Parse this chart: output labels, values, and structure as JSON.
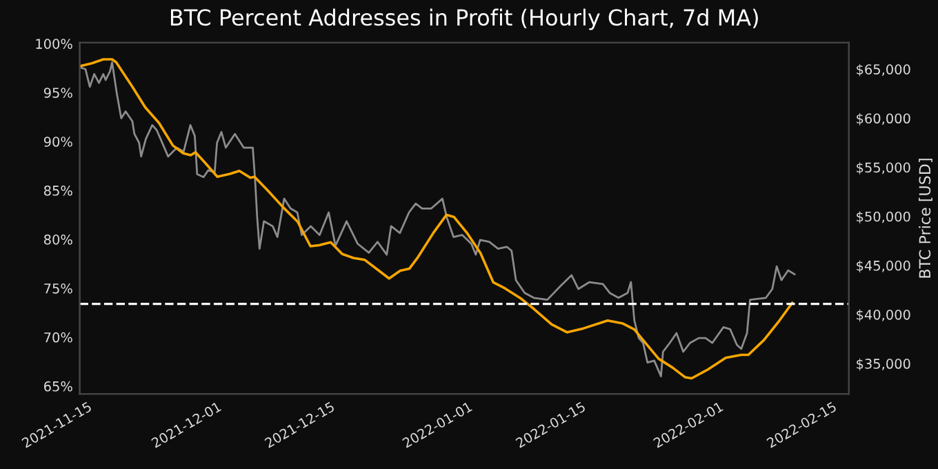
{
  "chart_data": {
    "type": "line",
    "title": "BTC Percent Addresses in Profit (Hourly Chart, 7d MA)",
    "y2label": "BTC Price [USD]",
    "xlim": [
      "2021-11-14",
      "2022-02-17"
    ],
    "xticks": [
      {
        "value": "2021-11-15",
        "label": "2021-11-15"
      },
      {
        "value": "2021-12-01",
        "label": "2021-12-01"
      },
      {
        "value": "2021-12-15",
        "label": "2021-12-15"
      },
      {
        "value": "2022-01-01",
        "label": "2022-01-01"
      },
      {
        "value": "2022-01-15",
        "label": "2022-01-15"
      },
      {
        "value": "2022-02-01",
        "label": "2022-02-01"
      },
      {
        "value": "2022-02-15",
        "label": "2022-02-15"
      }
    ],
    "ylim": [
      64.2,
      100.1
    ],
    "yticks": [
      {
        "value": 65,
        "label": "65%"
      },
      {
        "value": 70,
        "label": "70%"
      },
      {
        "value": 75,
        "label": "75%"
      },
      {
        "value": 80,
        "label": "80%"
      },
      {
        "value": 85,
        "label": "85%"
      },
      {
        "value": 90,
        "label": "90%"
      },
      {
        "value": 95,
        "label": "95%"
      },
      {
        "value": 100,
        "label": "100%"
      }
    ],
    "y2lim": [
      31900,
      67700
    ],
    "y2ticks": [
      {
        "value": 35000,
        "label": "$35,000"
      },
      {
        "value": 40000,
        "label": "$40,000"
      },
      {
        "value": 45000,
        "label": "$45,000"
      },
      {
        "value": 50000,
        "label": "$50,000"
      },
      {
        "value": 55000,
        "label": "$55,000"
      },
      {
        "value": 60000,
        "label": "$60,000"
      },
      {
        "value": 65000,
        "label": "$65,000"
      }
    ],
    "grid": false,
    "legend": false,
    "marker": "none",
    "ref_lines": [
      {
        "axis": "y",
        "value": 73.4,
        "color": "#ffffff",
        "line_style": "dashed"
      }
    ],
    "series": [
      {
        "axis": "y2",
        "color": "#8c8c8c",
        "line_style": "solid",
        "x": [
          "2021-11-14T00:00",
          "2021-11-14T17:00",
          "2021-11-15T06:00",
          "2021-11-15T19:00",
          "2021-11-16T09:00",
          "2021-11-16T22:00",
          "2021-11-17T05:00",
          "2021-11-17T18:00",
          "2021-11-18T00:00",
          "2021-11-18T07:00",
          "2021-11-18T14:00",
          "2021-11-19T03:00",
          "2021-11-19T16:00",
          "2021-11-20T12:00",
          "2021-11-20T18:00",
          "2021-11-21T08:00",
          "2021-11-21T14:00",
          "2021-11-22T04:00",
          "2021-11-22T23:00",
          "2021-11-23T12:00",
          "2021-11-24T02:00",
          "2021-11-24T22:00",
          "2021-11-26T00:00",
          "2021-11-26T20:00",
          "2021-11-27T16:00",
          "2021-11-28T05:00",
          "2021-11-28T12:00",
          "2021-11-29T07:00",
          "2021-11-29T21:00",
          "2021-11-30T16:00",
          "2021-11-30T23:00",
          "2021-12-01T12:00",
          "2021-12-02T01:00",
          "2021-12-03T04:00",
          "2021-12-04T06:00",
          "2021-12-05T09:00",
          "2021-12-05T16:00",
          "2021-12-05T22:00",
          "2021-12-06T05:00",
          "2021-12-06T18:00",
          "2021-12-07T20:00",
          "2021-12-08T10:00",
          "2021-12-09T06:00",
          "2021-12-10T01:00",
          "2021-12-10T21:00",
          "2021-12-11T10:00",
          "2021-12-12T13:00",
          "2021-12-13T15:00",
          "2021-12-14T18:00",
          "2021-12-15T14:00",
          "2021-12-16T23:00",
          "2021-12-18T08:00",
          "2021-12-19T17:00",
          "2021-12-20T19:00",
          "2021-12-21T22:00",
          "2021-12-22T11:00",
          "2021-12-23T13:00",
          "2021-12-24T16:00",
          "2021-12-25T12:00",
          "2021-12-26T07:00",
          "2021-12-27T10:00",
          "2021-12-28T19:00",
          "2021-12-29T08:00",
          "2021-12-30T04:00",
          "2021-12-31T06:00",
          "2022-01-01T09:00",
          "2022-01-01T22:00",
          "2022-01-02T11:00",
          "2022-01-03T14:00",
          "2022-01-04T16:00",
          "2022-01-05T18:00",
          "2022-01-06T08:00",
          "2022-01-06T21:00",
          "2022-01-07T23:00",
          "2022-01-09T02:00",
          "2022-01-10T18:00",
          "2022-01-12T09:00",
          "2022-01-13T18:00",
          "2022-01-14T14:00",
          "2022-01-15T23:00",
          "2022-01-17T15:00",
          "2022-01-18T11:00",
          "2022-01-19T13:00",
          "2022-01-20T16:00",
          "2022-01-21T02:00",
          "2022-01-21T12:00",
          "2022-01-22T01:00",
          "2022-01-22T14:00",
          "2022-01-23T03:00",
          "2022-01-23T23:00",
          "2022-01-24T19:00",
          "2022-01-25T01:00",
          "2022-01-25T21:00",
          "2022-01-26T17:00",
          "2022-01-27T13:00",
          "2022-01-28T09:00",
          "2022-01-29T11:00",
          "2022-01-30T07:00",
          "2022-01-31T03:00",
          "2022-02-01T12:00",
          "2022-02-02T08:00",
          "2022-02-03T04:00",
          "2022-02-03T17:00",
          "2022-02-04T10:00",
          "2022-02-04T19:00",
          "2022-02-06T18:00",
          "2022-02-07T13:00",
          "2022-02-08T02:00",
          "2022-02-08T16:00",
          "2022-02-09T12:00",
          "2022-02-10T07:00"
        ],
        "values": [
          65200,
          65000,
          63200,
          64500,
          63600,
          64500,
          63900,
          64800,
          65700,
          64100,
          62500,
          60000,
          60700,
          59700,
          58400,
          57500,
          56100,
          57900,
          59300,
          58800,
          57700,
          56100,
          57000,
          56600,
          59300,
          58200,
          54300,
          54000,
          54700,
          54500,
          57500,
          58600,
          57000,
          58400,
          57000,
          57000,
          53600,
          49900,
          46700,
          49500,
          49000,
          47900,
          51800,
          50800,
          50400,
          48100,
          49000,
          48100,
          50400,
          47000,
          49500,
          47200,
          46300,
          47400,
          46100,
          49000,
          48300,
          50400,
          51300,
          50800,
          50800,
          51800,
          49900,
          47900,
          48100,
          47200,
          46100,
          47600,
          47400,
          46700,
          46900,
          46500,
          43500,
          42200,
          41700,
          41500,
          42900,
          44000,
          42600,
          43300,
          43100,
          42200,
          41700,
          42200,
          43300,
          39400,
          37600,
          37100,
          35100,
          35300,
          33700,
          36200,
          37100,
          38100,
          36200,
          37100,
          37600,
          37600,
          37100,
          38700,
          38500,
          36900,
          36500,
          38100,
          41500,
          41700,
          42600,
          44900,
          43500,
          44500,
          44100
        ]
      },
      {
        "axis": "y",
        "color": "#f7a600",
        "line_style": "solid",
        "x": [
          "2021-11-14T00:00",
          "2021-11-15T12:00",
          "2021-11-16T22:00",
          "2021-11-18T00:00",
          "2021-11-18T12:00",
          "2021-11-20T12:00",
          "2021-11-22T02:00",
          "2021-11-23T19:00",
          "2021-11-25T12:00",
          "2021-11-26T19:00",
          "2021-11-27T17:00",
          "2021-11-28T07:00",
          "2021-11-29T07:00",
          "2021-12-01T00:00",
          "2021-12-02T14:00",
          "2021-12-03T17:00",
          "2021-12-05T02:00",
          "2021-12-05T14:00",
          "2021-12-07T05:00",
          "2021-12-09T05:00",
          "2021-12-10T22:00",
          "2021-12-12T12:00",
          "2021-12-13T14:00",
          "2021-12-15T00:00",
          "2021-12-16T10:00",
          "2021-12-17T19:00",
          "2021-12-19T05:00",
          "2021-12-20T19:00",
          "2021-12-22T05:00",
          "2021-12-23T14:00",
          "2021-12-24T17:00",
          "2021-12-25T19:00",
          "2021-12-27T17:00",
          "2021-12-29T07:00",
          "2021-12-30T05:00",
          "2021-12-31T19:00",
          "2022-01-02T12:00",
          "2022-01-04T02:00",
          "2022-01-05T12:00",
          "2022-01-07T10:00",
          "2022-01-09T02:00",
          "2022-01-11T07:00",
          "2022-01-13T05:00",
          "2022-01-15T05:00",
          "2022-01-18T05:00",
          "2022-01-20T02:00",
          "2022-01-21T12:00",
          "2022-01-22T14:00",
          "2022-01-24T12:00",
          "2022-01-26T05:00",
          "2022-01-27T19:00",
          "2022-01-28T14:00",
          "2022-01-30T14:00",
          "2022-02-01T19:00",
          "2022-02-03T17:00",
          "2022-02-04T14:00",
          "2022-02-06T12:00",
          "2022-02-08T10:00",
          "2022-02-10T00:00"
        ],
        "values": [
          97.7,
          98.0,
          98.4,
          98.4,
          98.1,
          95.6,
          93.5,
          91.9,
          89.6,
          88.8,
          88.6,
          88.9,
          88.0,
          86.4,
          86.7,
          87.0,
          86.3,
          86.4,
          85.0,
          83.2,
          81.8,
          79.3,
          79.4,
          79.7,
          78.5,
          78.1,
          77.9,
          76.9,
          76.0,
          76.8,
          77.0,
          78.2,
          80.7,
          82.5,
          82.3,
          80.7,
          78.6,
          75.6,
          75.0,
          74.0,
          72.9,
          71.3,
          70.5,
          70.9,
          71.7,
          71.4,
          70.8,
          69.7,
          67.8,
          66.9,
          65.9,
          65.8,
          66.7,
          67.9,
          68.2,
          68.2,
          69.7,
          71.7,
          73.5
        ]
      }
    ]
  }
}
